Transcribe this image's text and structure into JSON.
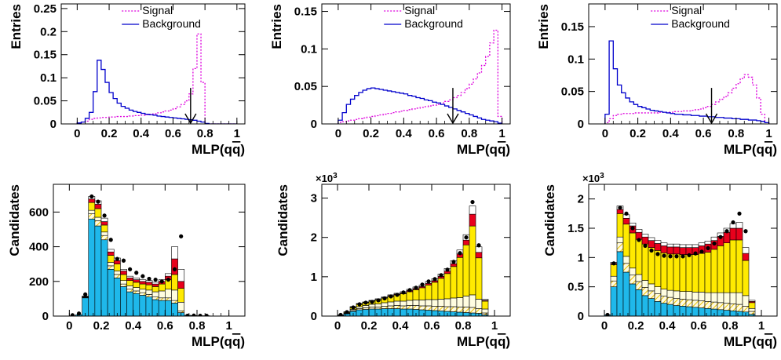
{
  "colors": {
    "signal": "#dd00dd",
    "background": "#0000cc",
    "arrow": "#000000",
    "comp_blue": "#1fb8ea",
    "comp_yellow": "#ffea00",
    "comp_red": "#e8001c",
    "comp_hatch": "#f2dd40",
    "comp_light": "#fffde0",
    "data_points": "#000000"
  },
  "chart_data": [
    {
      "type": "line",
      "panel": "top-left",
      "xlabel": "MLP(qq)",
      "ylabel": "Entries",
      "xlim": [
        -0.1,
        1.05
      ],
      "ylim": [
        0,
        0.26
      ],
      "xticks": [
        "0",
        "0.2",
        "0.4",
        "0.6",
        "0.8",
        "1"
      ],
      "xtick_values": [
        0,
        0.2,
        0.4,
        0.6,
        0.8,
        1
      ],
      "yticks": [
        "0",
        "0.05",
        "0.1",
        "0.15",
        "0.2",
        "0.25"
      ],
      "ytick_values": [
        0,
        0.05,
        0.1,
        0.15,
        0.2,
        0.25
      ],
      "legend": [
        "Signal",
        "Background"
      ],
      "cut_value": 0.71,
      "bin_width": 0.025,
      "bin_start": 0.0,
      "series": [
        {
          "name": "Signal",
          "style": "dotted",
          "values": [
            0.002,
            0.004,
            0.006,
            0.01,
            0.012,
            0.013,
            0.014,
            0.014,
            0.015,
            0.015,
            0.016,
            0.016,
            0.016,
            0.017,
            0.018,
            0.018,
            0.019,
            0.02,
            0.021,
            0.022,
            0.024,
            0.026,
            0.028,
            0.03,
            0.033,
            0.037,
            0.042,
            0.05,
            0.065,
            0.12,
            0.195,
            0.09,
            0.0,
            0,
            0,
            0,
            0,
            0,
            0,
            0
          ]
        },
        {
          "name": "Background",
          "style": "solid",
          "values": [
            0.002,
            0.004,
            0.012,
            0.025,
            0.07,
            0.138,
            0.118,
            0.09,
            0.068,
            0.055,
            0.045,
            0.038,
            0.034,
            0.03,
            0.027,
            0.025,
            0.023,
            0.021,
            0.02,
            0.019,
            0.017,
            0.016,
            0.015,
            0.014,
            0.013,
            0.012,
            0.011,
            0.01,
            0.009,
            0.008,
            0.006,
            0.004,
            0.001,
            0,
            0,
            0,
            0,
            0,
            0,
            0
          ]
        }
      ]
    },
    {
      "type": "line",
      "panel": "top-middle",
      "xlabel": "MLP(qq)",
      "ylabel": "Entries",
      "xlim": [
        -0.1,
        1.05
      ],
      "ylim": [
        0,
        0.16
      ],
      "xticks": [
        "0",
        "0.2",
        "0.4",
        "0.6",
        "0.8",
        "1"
      ],
      "xtick_values": [
        0,
        0.2,
        0.4,
        0.6,
        0.8,
        1
      ],
      "yticks": [
        "0",
        "0.05",
        "0.1",
        "0.15"
      ],
      "ytick_values": [
        0,
        0.05,
        0.1,
        0.15
      ],
      "legend": [
        "Signal",
        "Background"
      ],
      "cut_value": 0.7,
      "bin_width": 0.025,
      "bin_start": 0.0,
      "series": [
        {
          "name": "Signal",
          "style": "dotted",
          "values": [
            0.002,
            0.003,
            0.004,
            0.005,
            0.006,
            0.007,
            0.008,
            0.009,
            0.01,
            0.011,
            0.012,
            0.013,
            0.014,
            0.015,
            0.016,
            0.017,
            0.018,
            0.019,
            0.02,
            0.021,
            0.022,
            0.023,
            0.024,
            0.025,
            0.026,
            0.028,
            0.03,
            0.032,
            0.035,
            0.038,
            0.042,
            0.047,
            0.053,
            0.06,
            0.068,
            0.078,
            0.09,
            0.108,
            0.125,
            0.01
          ]
        },
        {
          "name": "Background",
          "style": "solid",
          "values": [
            0.005,
            0.015,
            0.026,
            0.033,
            0.038,
            0.042,
            0.045,
            0.047,
            0.048,
            0.047,
            0.046,
            0.045,
            0.044,
            0.043,
            0.042,
            0.041,
            0.04,
            0.038,
            0.037,
            0.035,
            0.034,
            0.032,
            0.031,
            0.029,
            0.028,
            0.026,
            0.024,
            0.022,
            0.02,
            0.018,
            0.016,
            0.014,
            0.012,
            0.01,
            0.008,
            0.006,
            0.005,
            0.004,
            0.003,
            0.001
          ]
        }
      ]
    },
    {
      "type": "line",
      "panel": "top-right",
      "xlabel": "MLP(qq)",
      "ylabel": "Entries",
      "xlim": [
        -0.1,
        1.05
      ],
      "ylim": [
        0,
        0.185
      ],
      "xticks": [
        "0",
        "0.2",
        "0.4",
        "0.6",
        "0.8",
        "1"
      ],
      "xtick_values": [
        0,
        0.2,
        0.4,
        0.6,
        0.8,
        1
      ],
      "yticks": [
        "0",
        "0.05",
        "0.1",
        "0.15"
      ],
      "ytick_values": [
        0,
        0.05,
        0.1,
        0.15
      ],
      "legend": [
        "Signal",
        "Background"
      ],
      "cut_value": 0.65,
      "bin_width": 0.025,
      "bin_start": 0.0,
      "series": [
        {
          "name": "Signal",
          "style": "dotted",
          "values": [
            0.002,
            0.008,
            0.013,
            0.015,
            0.016,
            0.016,
            0.016,
            0.017,
            0.017,
            0.017,
            0.017,
            0.017,
            0.017,
            0.018,
            0.018,
            0.018,
            0.018,
            0.019,
            0.019,
            0.02,
            0.02,
            0.021,
            0.022,
            0.023,
            0.025,
            0.027,
            0.03,
            0.034,
            0.038,
            0.042,
            0.048,
            0.055,
            0.062,
            0.07,
            0.076,
            0.072,
            0.06,
            0.04,
            0.015,
            0.002
          ]
        },
        {
          "name": "Background",
          "style": "solid",
          "values": [
            0.015,
            0.128,
            0.085,
            0.06,
            0.048,
            0.04,
            0.034,
            0.03,
            0.027,
            0.025,
            0.023,
            0.021,
            0.02,
            0.019,
            0.018,
            0.017,
            0.016,
            0.015,
            0.015,
            0.014,
            0.014,
            0.013,
            0.013,
            0.012,
            0.012,
            0.011,
            0.011,
            0.01,
            0.01,
            0.009,
            0.009,
            0.008,
            0.008,
            0.007,
            0.007,
            0.006,
            0.006,
            0.005,
            0.004,
            0.002
          ]
        }
      ]
    },
    {
      "type": "bar",
      "panel": "bottom-left",
      "stacked": true,
      "xlabel": "MLP(qq)",
      "ylabel": "Candidates",
      "multiplier": "",
      "xlim": [
        -0.1,
        1.1
      ],
      "ylim": [
        0,
        760
      ],
      "xticks": [
        "0",
        "0.2",
        "0.4",
        "0.6",
        "0.8",
        "1"
      ],
      "xtick_values": [
        0,
        0.2,
        0.4,
        0.6,
        0.8,
        1
      ],
      "yticks": [
        "0",
        "200",
        "400",
        "600"
      ],
      "ytick_values": [
        0,
        200,
        400,
        600
      ],
      "bin_width": 0.04,
      "bin_start": 0.0,
      "components": [
        "blue",
        "hatch",
        "light",
        "yellow",
        "red",
        "white"
      ],
      "stacks": [
        [
          2,
          0,
          0,
          0,
          0,
          0
        ],
        [
          8,
          0,
          0,
          0,
          0,
          0
        ],
        [
          105,
          3,
          2,
          3,
          0,
          2
        ],
        [
          560,
          30,
          20,
          45,
          20,
          15
        ],
        [
          520,
          30,
          20,
          50,
          25,
          20
        ],
        [
          440,
          25,
          20,
          40,
          20,
          20
        ],
        [
          270,
          20,
          20,
          40,
          20,
          15
        ],
        [
          220,
          20,
          20,
          40,
          20,
          15
        ],
        [
          170,
          15,
          20,
          35,
          20,
          10
        ],
        [
          140,
          15,
          20,
          30,
          15,
          10
        ],
        [
          130,
          15,
          20,
          30,
          15,
          10
        ],
        [
          120,
          15,
          20,
          30,
          15,
          10
        ],
        [
          110,
          15,
          25,
          30,
          15,
          10
        ],
        [
          95,
          15,
          30,
          30,
          15,
          10
        ],
        [
          90,
          15,
          40,
          40,
          15,
          10
        ],
        [
          90,
          15,
          50,
          55,
          20,
          15
        ],
        [
          75,
          15,
          60,
          90,
          90,
          70
        ],
        [
          20,
          10,
          50,
          80,
          40,
          70
        ],
        [
          5,
          0,
          0,
          0,
          0,
          0
        ],
        [
          3,
          0,
          0,
          0,
          0,
          0
        ],
        [
          2,
          0,
          0,
          0,
          0,
          0
        ],
        [
          2,
          0,
          0,
          0,
          0,
          0
        ]
      ],
      "points": [
        5,
        15,
        125,
        690,
        660,
        580,
        440,
        330,
        320,
        270,
        250,
        230,
        215,
        210,
        200,
        210,
        270,
        460,
        2,
        3,
        2,
        2
      ]
    },
    {
      "type": "bar",
      "panel": "bottom-middle",
      "stacked": true,
      "xlabel": "MLP(qq)",
      "ylabel": "Candidates",
      "multiplier": "×10",
      "multiplier_exp": "3",
      "xlim": [
        -0.1,
        1.1
      ],
      "ylim": [
        0,
        3.35
      ],
      "xticks": [
        "0",
        "0.2",
        "0.4",
        "0.6",
        "0.8",
        "1"
      ],
      "xtick_values": [
        0,
        0.2,
        0.4,
        0.6,
        0.8,
        1
      ],
      "yticks": [
        "0",
        "1",
        "2",
        "3"
      ],
      "ytick_values": [
        0,
        1,
        2,
        3
      ],
      "bin_width": 0.04,
      "bin_start": 0.0,
      "components": [
        "blue",
        "hatch",
        "light",
        "yellow",
        "red",
        "white"
      ],
      "stacks": [
        [
          0.02,
          0.0,
          0.0,
          0.01,
          0,
          0
        ],
        [
          0.06,
          0.01,
          0.01,
          0.02,
          0,
          0.01
        ],
        [
          0.12,
          0.02,
          0.03,
          0.05,
          0.01,
          0.01
        ],
        [
          0.16,
          0.03,
          0.05,
          0.06,
          0.01,
          0.01
        ],
        [
          0.17,
          0.04,
          0.06,
          0.07,
          0.01,
          0.01
        ],
        [
          0.18,
          0.05,
          0.07,
          0.08,
          0.01,
          0.01
        ],
        [
          0.18,
          0.05,
          0.08,
          0.1,
          0.01,
          0.02
        ],
        [
          0.19,
          0.06,
          0.09,
          0.12,
          0.01,
          0.02
        ],
        [
          0.19,
          0.07,
          0.1,
          0.14,
          0.02,
          0.02
        ],
        [
          0.19,
          0.08,
          0.11,
          0.16,
          0.02,
          0.02
        ],
        [
          0.18,
          0.08,
          0.12,
          0.19,
          0.02,
          0.03
        ],
        [
          0.18,
          0.09,
          0.13,
          0.22,
          0.03,
          0.03
        ],
        [
          0.17,
          0.1,
          0.14,
          0.26,
          0.03,
          0.04
        ],
        [
          0.16,
          0.1,
          0.15,
          0.31,
          0.03,
          0.04
        ],
        [
          0.15,
          0.11,
          0.16,
          0.37,
          0.04,
          0.05
        ],
        [
          0.14,
          0.11,
          0.17,
          0.44,
          0.04,
          0.05
        ],
        [
          0.13,
          0.12,
          0.18,
          0.53,
          0.05,
          0.06
        ],
        [
          0.12,
          0.12,
          0.2,
          0.64,
          0.06,
          0.07
        ],
        [
          0.11,
          0.13,
          0.22,
          0.8,
          0.07,
          0.08
        ],
        [
          0.1,
          0.13,
          0.24,
          1.02,
          0.09,
          0.1
        ],
        [
          0.09,
          0.14,
          0.28,
          1.3,
          0.12,
          0.14
        ],
        [
          0.08,
          0.14,
          0.32,
          1.75,
          0.3,
          0.21
        ],
        [
          0.07,
          0.12,
          0.24,
          1.05,
          0.14,
          0.14
        ],
        [
          0.03,
          0.05,
          0.1,
          0.2,
          0.02,
          0.03
        ],
        [
          0.005,
          0,
          0,
          0,
          0,
          0
        ],
        [
          0.003,
          0,
          0,
          0,
          0,
          0
        ]
      ],
      "points": [
        0.03,
        0.1,
        0.22,
        0.3,
        0.34,
        0.36,
        0.4,
        0.45,
        0.5,
        0.54,
        0.6,
        0.66,
        0.72,
        0.8,
        0.88,
        0.94,
        1.04,
        1.18,
        1.38,
        1.6,
        2.0,
        2.9,
        1.8,
        0.0,
        0,
        0
      ]
    },
    {
      "type": "bar",
      "panel": "bottom-right",
      "stacked": true,
      "xlabel": "MLP(qq)",
      "ylabel": "Candidates",
      "multiplier": "×10",
      "multiplier_exp": "3",
      "xlim": [
        -0.1,
        1.1
      ],
      "ylim": [
        0,
        2.25
      ],
      "xticks": [
        "0",
        "0.5",
        "1",
        "1.5",
        "2"
      ],
      "xticks_axis": [
        "0",
        "0.2",
        "0.4",
        "0.6",
        "0.8",
        "1"
      ],
      "xtick_values": [
        0,
        0.2,
        0.4,
        0.6,
        0.8,
        1
      ],
      "yticks": [
        "0",
        "0.5",
        "1",
        "1.5",
        "2"
      ],
      "ytick_values": [
        0,
        0.5,
        1,
        1.5,
        2
      ],
      "bin_width": 0.04,
      "bin_start": 0.0,
      "components": [
        "blue",
        "hatch",
        "light",
        "yellow",
        "red",
        "white"
      ],
      "stacks": [
        [
          0.02,
          0,
          0,
          0,
          0,
          0
        ],
        [
          0.5,
          0.1,
          0.08,
          0.2,
          0.02,
          0.02
        ],
        [
          1.1,
          0.15,
          0.1,
          0.4,
          0.07,
          0.06
        ],
        [
          0.75,
          0.15,
          0.12,
          0.55,
          0.1,
          0.06
        ],
        [
          0.55,
          0.15,
          0.12,
          0.6,
          0.12,
          0.05
        ],
        [
          0.45,
          0.14,
          0.12,
          0.6,
          0.12,
          0.05
        ],
        [
          0.35,
          0.14,
          0.12,
          0.62,
          0.12,
          0.05
        ],
        [
          0.3,
          0.13,
          0.12,
          0.62,
          0.12,
          0.05
        ],
        [
          0.25,
          0.13,
          0.12,
          0.62,
          0.12,
          0.05
        ],
        [
          0.22,
          0.12,
          0.12,
          0.62,
          0.12,
          0.05
        ],
        [
          0.2,
          0.12,
          0.12,
          0.62,
          0.12,
          0.05
        ],
        [
          0.18,
          0.12,
          0.13,
          0.63,
          0.12,
          0.05
        ],
        [
          0.17,
          0.12,
          0.13,
          0.63,
          0.12,
          0.05
        ],
        [
          0.16,
          0.12,
          0.14,
          0.63,
          0.12,
          0.05
        ],
        [
          0.15,
          0.12,
          0.14,
          0.64,
          0.12,
          0.05
        ],
        [
          0.14,
          0.12,
          0.15,
          0.66,
          0.13,
          0.05
        ],
        [
          0.13,
          0.12,
          0.15,
          0.69,
          0.14,
          0.05
        ],
        [
          0.12,
          0.12,
          0.16,
          0.74,
          0.15,
          0.06
        ],
        [
          0.11,
          0.12,
          0.17,
          0.8,
          0.16,
          0.06
        ],
        [
          0.1,
          0.12,
          0.18,
          0.85,
          0.18,
          0.07
        ],
        [
          0.09,
          0.12,
          0.19,
          0.9,
          0.2,
          0.08
        ],
        [
          0.08,
          0.12,
          0.2,
          0.9,
          0.2,
          0.1
        ],
        [
          0.07,
          0.1,
          0.18,
          0.6,
          0.12,
          0.1
        ],
        [
          0.03,
          0.05,
          0.05,
          0.1,
          0.02,
          0.02
        ],
        [
          0.005,
          0,
          0,
          0,
          0,
          0
        ]
      ],
      "points": [
        0.02,
        0.9,
        1.85,
        1.75,
        1.5,
        1.3,
        1.2,
        1.12,
        1.06,
        1.03,
        1.02,
        1.02,
        1.02,
        1.04,
        1.07,
        1.1,
        1.16,
        1.24,
        1.35,
        1.45,
        1.6,
        1.75,
        1.45,
        0.0,
        0
      ]
    }
  ],
  "labels": {
    "xlabel": "MLP(qq)",
    "signal": "Signal",
    "background": "Background"
  }
}
